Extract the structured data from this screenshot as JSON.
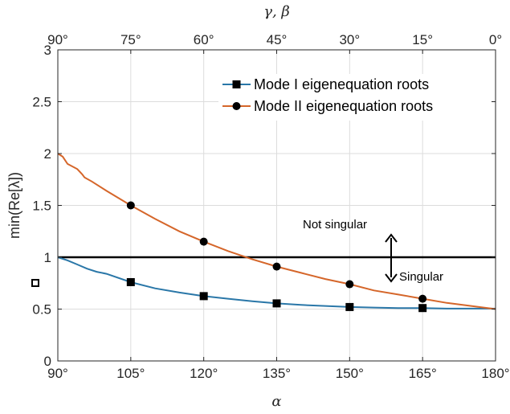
{
  "chart_data": {
    "type": "line",
    "xlabel": "α",
    "x2label": "γ, β",
    "ylabel": "min(Re[λ])",
    "xlim": [
      90,
      180
    ],
    "ylim": [
      0,
      3
    ],
    "xticks": [
      90,
      105,
      120,
      135,
      150,
      165,
      180
    ],
    "xtick_labels": [
      "90°",
      "105°",
      "120°",
      "135°",
      "150°",
      "165°",
      "180°"
    ],
    "x2tick_labels": [
      "90°",
      "75°",
      "60°",
      "45°",
      "30°",
      "15°",
      "0°"
    ],
    "yticks": [
      0,
      0.5,
      1,
      1.5,
      2,
      2.5,
      3
    ],
    "ytick_labels": [
      "0",
      "0.5",
      "1",
      "1.5",
      "2",
      "2.5",
      "3"
    ],
    "grid": true,
    "legend_position": "top-right",
    "series": [
      {
        "name": "Mode I eigenequation roots",
        "color": "#2a77a8",
        "marker": "square",
        "x": [
          90,
          92,
          94,
          96,
          98,
          100,
          105,
          110,
          115,
          120,
          125,
          130,
          135,
          140,
          145,
          150,
          155,
          160,
          165,
          170,
          175,
          180
        ],
        "y": [
          1.0,
          0.97,
          0.93,
          0.89,
          0.86,
          0.84,
          0.76,
          0.7,
          0.66,
          0.625,
          0.6,
          0.575,
          0.555,
          0.54,
          0.53,
          0.52,
          0.515,
          0.51,
          0.51,
          0.505,
          0.505,
          0.505
        ],
        "marker_x": [
          105,
          120,
          135,
          150,
          165
        ],
        "marker_y": [
          0.76,
          0.625,
          0.555,
          0.52,
          0.51
        ]
      },
      {
        "name": "Mode II eigenequation roots",
        "color": "#d5662a",
        "marker": "circle",
        "x": [
          90,
          91,
          92,
          94,
          95,
          95.5,
          97,
          100,
          105,
          110,
          115,
          120,
          125,
          130,
          135,
          140,
          145,
          150,
          155,
          160,
          165,
          170,
          175,
          180
        ],
        "y": [
          2.0,
          1.97,
          1.9,
          1.85,
          1.8,
          1.77,
          1.73,
          1.64,
          1.5,
          1.37,
          1.25,
          1.15,
          1.06,
          0.98,
          0.91,
          0.85,
          0.79,
          0.74,
          0.68,
          0.64,
          0.6,
          0.56,
          0.53,
          0.5
        ],
        "marker_x": [
          105,
          120,
          135,
          150,
          165
        ],
        "marker_y": [
          1.5,
          1.15,
          0.91,
          0.74,
          0.6
        ]
      }
    ],
    "reference_line": {
      "y": 1,
      "color": "#000000"
    },
    "annotations": {
      "not_singular": "Not singular",
      "singular": "Singular"
    }
  }
}
